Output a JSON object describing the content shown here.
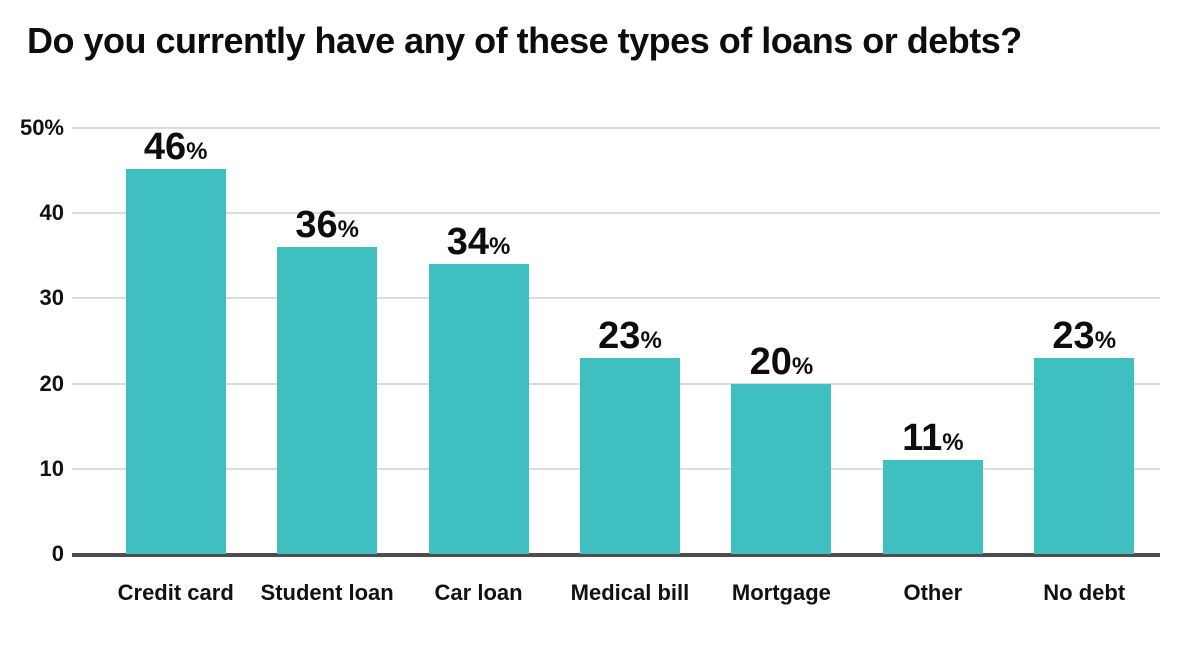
{
  "chart_data": {
    "type": "bar",
    "title": "Do you currently have any of these types of loans or debts?",
    "categories": [
      "Credit card",
      "Student loan",
      "Car loan",
      "Medical bill",
      "Mortgage",
      "Other",
      "No debt"
    ],
    "values": [
      46,
      36,
      34,
      23,
      20,
      11,
      23
    ],
    "value_suffix": "%",
    "xlabel": "",
    "ylabel": "",
    "ylim": [
      0,
      50
    ],
    "yticks": [
      0,
      10,
      20,
      30,
      40,
      50
    ],
    "ytick_labels": [
      "0",
      "10",
      "20",
      "30",
      "40",
      "50%"
    ],
    "grid": true,
    "legend": "none",
    "bar_color": "#3fbfbf",
    "gridline_color": "#dcdcdc",
    "axis_line_color": "#4d4d4d",
    "text_color": "#0d0d0d"
  }
}
